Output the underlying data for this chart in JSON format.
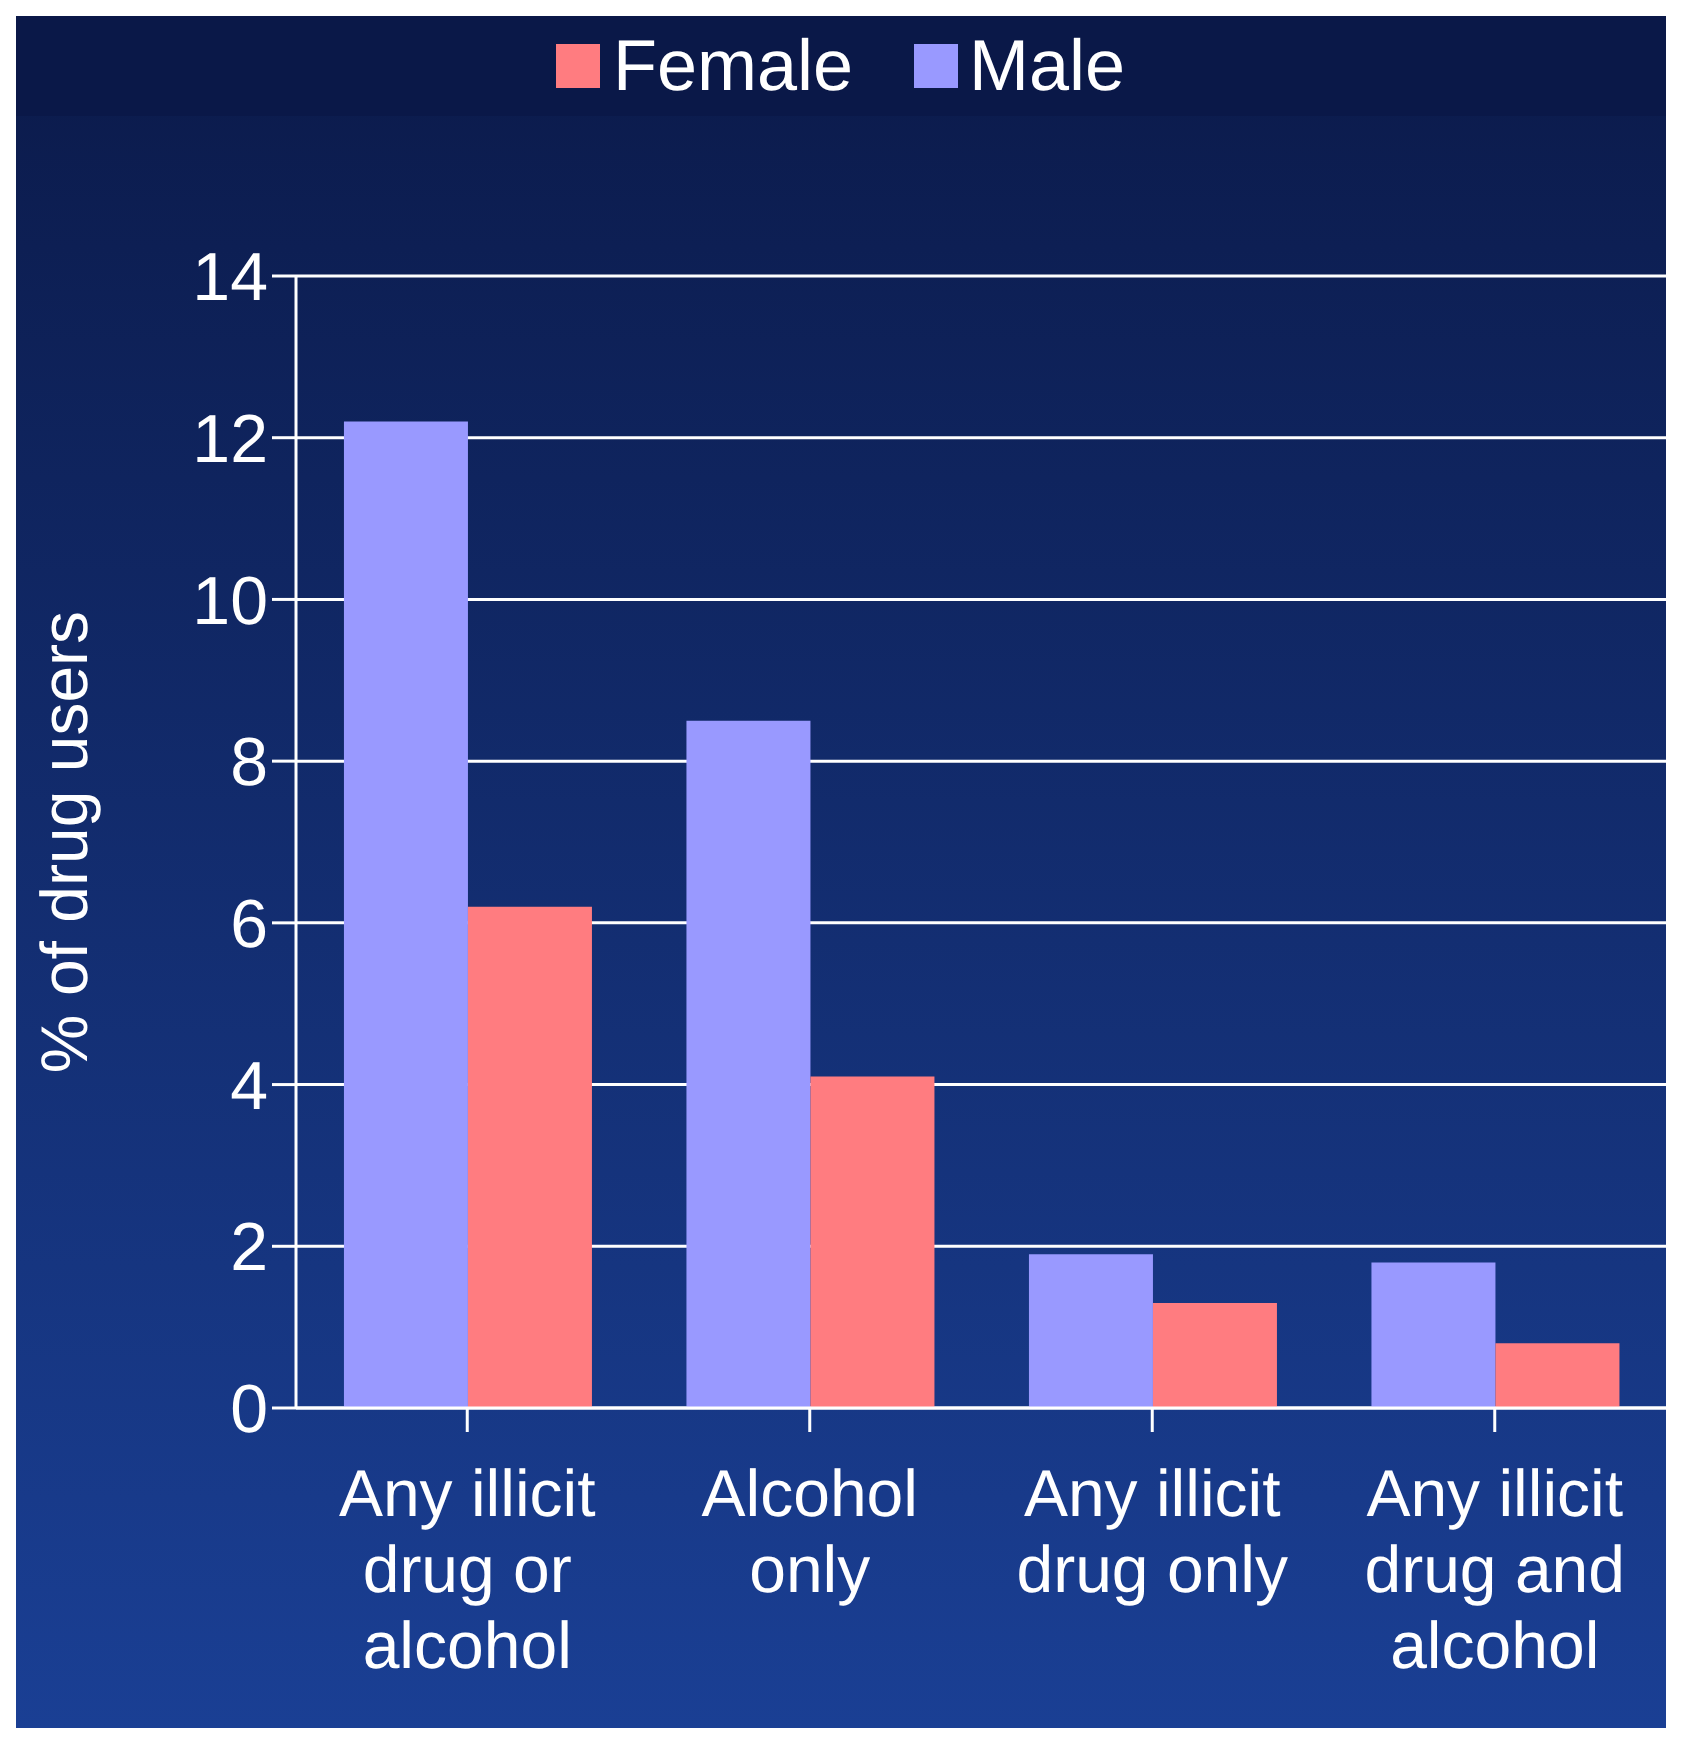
{
  "chart_data": {
    "type": "bar",
    "ylabel": "% of drug users",
    "categories": [
      "Any illicit drug or alcohol",
      "Alcohol only",
      "Any illicit drug only",
      "Any illicit drug and alcohol"
    ],
    "series": [
      {
        "name": "Male",
        "color": "#9999ff",
        "values": [
          12.2,
          8.5,
          1.9,
          1.8
        ]
      },
      {
        "name": "Female",
        "color": "#ff7c80",
        "values": [
          6.2,
          4.1,
          1.3,
          0.8
        ]
      }
    ],
    "ylim": [
      0,
      14
    ],
    "yticks": [
      0,
      2,
      4,
      6,
      8,
      10,
      12,
      14
    ],
    "grid": "y",
    "legend": "top"
  }
}
